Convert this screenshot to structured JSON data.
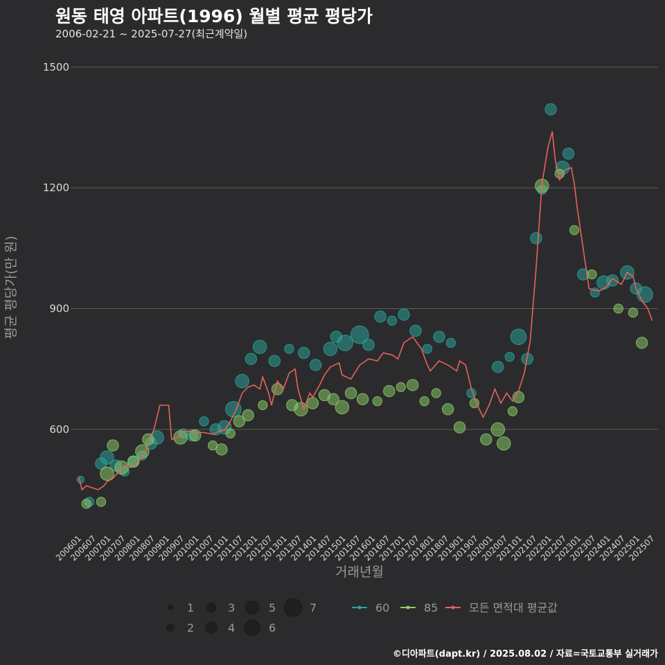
{
  "header": {
    "title": "원동 태영 아파트(1996) 월별 평균 평당가",
    "subtitle": "2006-02-21 ~ 2025-07-27(최근계약일)"
  },
  "footer": {
    "credit": "©디아파트(dapt.kr) / 2025.08.02 / 자료=국토교통부 실거래가"
  },
  "colors": {
    "background": "#2b2b2d",
    "grid": "#5e5e5e",
    "s60": "#2aa7a0",
    "s85": "#8fd16a",
    "avg": "#e8635a"
  },
  "chart_data": {
    "type": "scatter",
    "xlabel": "거래년월",
    "ylabel": "평균 평당가(만 원)",
    "ylim": [
      345,
      1560
    ],
    "yticks": [
      600,
      900,
      1200,
      1500
    ],
    "grid": true,
    "legend_position": "bottom",
    "x_tick_labels": [
      "200601",
      "200607",
      "200701",
      "200707",
      "200801",
      "200807",
      "200901",
      "200907",
      "201001",
      "201007",
      "201101",
      "201107",
      "201201",
      "201207",
      "201301",
      "201307",
      "201401",
      "201407",
      "201501",
      "201507",
      "201601",
      "201607",
      "201701",
      "201707",
      "201801",
      "201807",
      "201901",
      "201907",
      "202001",
      "202007",
      "202101",
      "202107",
      "202201",
      "202207",
      "202301",
      "202307",
      "202401",
      "202407",
      "202501",
      "202507"
    ],
    "size_legend": [
      "1",
      "2",
      "3",
      "4",
      "5",
      "6",
      "7"
    ],
    "series": [
      {
        "name": "60",
        "type": "scatter",
        "points": [
          [
            2006.1,
            475,
            2
          ],
          [
            2006.4,
            420,
            3
          ],
          [
            2006.8,
            515,
            4
          ],
          [
            2007.0,
            530,
            5
          ],
          [
            2007.3,
            510,
            4
          ],
          [
            2007.6,
            495,
            3
          ],
          [
            2007.9,
            520,
            4
          ],
          [
            2008.2,
            535,
            3
          ],
          [
            2008.5,
            565,
            4
          ],
          [
            2008.7,
            580,
            5
          ],
          [
            2009.6,
            590,
            3
          ],
          [
            2009.9,
            585,
            4
          ],
          [
            2010.3,
            620,
            3
          ],
          [
            2010.7,
            600,
            4
          ],
          [
            2011.0,
            605,
            5
          ],
          [
            2011.3,
            650,
            6
          ],
          [
            2011.6,
            720,
            5
          ],
          [
            2011.9,
            775,
            4
          ],
          [
            2012.2,
            805,
            5
          ],
          [
            2012.7,
            770,
            4
          ],
          [
            2013.2,
            800,
            3
          ],
          [
            2013.7,
            790,
            4
          ],
          [
            2014.1,
            760,
            4
          ],
          [
            2014.6,
            800,
            5
          ],
          [
            2014.8,
            830,
            4
          ],
          [
            2015.1,
            815,
            6
          ],
          [
            2015.6,
            835,
            7
          ],
          [
            2015.9,
            810,
            4
          ],
          [
            2016.3,
            880,
            4
          ],
          [
            2016.7,
            870,
            3
          ],
          [
            2017.1,
            885,
            4
          ],
          [
            2017.5,
            845,
            4
          ],
          [
            2017.9,
            800,
            3
          ],
          [
            2018.3,
            830,
            4
          ],
          [
            2018.7,
            815,
            3
          ],
          [
            2019.4,
            690,
            3
          ],
          [
            2020.3,
            755,
            4
          ],
          [
            2020.7,
            780,
            3
          ],
          [
            2021.0,
            830,
            6
          ],
          [
            2021.3,
            775,
            4
          ],
          [
            2021.6,
            1075,
            4
          ],
          [
            2021.8,
            1195,
            3
          ],
          [
            2022.1,
            1395,
            4
          ],
          [
            2022.5,
            1250,
            5
          ],
          [
            2022.7,
            1285,
            4
          ],
          [
            2023.2,
            985,
            4
          ],
          [
            2023.6,
            940,
            3
          ],
          [
            2023.9,
            965,
            5
          ],
          [
            2024.2,
            970,
            4
          ],
          [
            2024.7,
            990,
            5
          ],
          [
            2025.0,
            950,
            4
          ],
          [
            2025.3,
            935,
            6
          ]
        ]
      },
      {
        "name": "85",
        "type": "scatter",
        "points": [
          [
            2006.3,
            415,
            3
          ],
          [
            2006.8,
            420,
            3
          ],
          [
            2007.0,
            490,
            5
          ],
          [
            2007.2,
            560,
            4
          ],
          [
            2007.5,
            505,
            5
          ],
          [
            2007.9,
            520,
            4
          ],
          [
            2008.2,
            545,
            5
          ],
          [
            2008.4,
            575,
            4
          ],
          [
            2009.5,
            580,
            5
          ],
          [
            2010.0,
            585,
            4
          ],
          [
            2010.6,
            560,
            3
          ],
          [
            2010.9,
            550,
            4
          ],
          [
            2011.2,
            590,
            3
          ],
          [
            2011.5,
            620,
            4
          ],
          [
            2011.8,
            635,
            4
          ],
          [
            2012.3,
            660,
            3
          ],
          [
            2012.8,
            700,
            4
          ],
          [
            2013.3,
            660,
            4
          ],
          [
            2013.6,
            650,
            5
          ],
          [
            2014.0,
            665,
            4
          ],
          [
            2014.4,
            685,
            4
          ],
          [
            2014.7,
            675,
            4
          ],
          [
            2015.0,
            655,
            5
          ],
          [
            2015.3,
            690,
            4
          ],
          [
            2015.7,
            675,
            4
          ],
          [
            2016.2,
            670,
            3
          ],
          [
            2016.6,
            695,
            4
          ],
          [
            2017.0,
            705,
            3
          ],
          [
            2017.4,
            710,
            4
          ],
          [
            2017.8,
            670,
            3
          ],
          [
            2018.2,
            690,
            3
          ],
          [
            2018.6,
            650,
            4
          ],
          [
            2019.0,
            605,
            4
          ],
          [
            2019.5,
            665,
            3
          ],
          [
            2019.9,
            575,
            4
          ],
          [
            2020.3,
            600,
            5
          ],
          [
            2020.5,
            565,
            5
          ],
          [
            2020.8,
            645,
            3
          ],
          [
            2021.0,
            680,
            4
          ],
          [
            2021.8,
            1205,
            5
          ],
          [
            2022.4,
            1235,
            3
          ],
          [
            2022.9,
            1095,
            3
          ],
          [
            2023.5,
            985,
            3
          ],
          [
            2024.4,
            900,
            3
          ],
          [
            2024.9,
            890,
            3
          ],
          [
            2025.2,
            815,
            4
          ]
        ]
      },
      {
        "name": "모든 면적대 평균값",
        "type": "line",
        "points": [
          [
            2006.05,
            480
          ],
          [
            2006.15,
            450
          ],
          [
            2006.3,
            460
          ],
          [
            2006.5,
            455
          ],
          [
            2006.7,
            450
          ],
          [
            2006.9,
            460
          ],
          [
            2007.0,
            470
          ],
          [
            2007.2,
            478
          ],
          [
            2007.4,
            495
          ],
          [
            2007.6,
            510
          ],
          [
            2007.8,
            505
          ],
          [
            2008.0,
            515
          ],
          [
            2008.2,
            530
          ],
          [
            2008.4,
            560
          ],
          [
            2008.6,
            600
          ],
          [
            2008.8,
            660
          ],
          [
            2009.0,
            660
          ],
          [
            2009.1,
            660
          ],
          [
            2009.2,
            575
          ],
          [
            2009.4,
            580
          ],
          [
            2009.6,
            595
          ],
          [
            2009.8,
            595
          ],
          [
            2010.0,
            593
          ],
          [
            2010.3,
            592
          ],
          [
            2010.6,
            588
          ],
          [
            2010.8,
            595
          ],
          [
            2011.0,
            598
          ],
          [
            2011.2,
            620
          ],
          [
            2011.4,
            650
          ],
          [
            2011.6,
            690
          ],
          [
            2011.8,
            705
          ],
          [
            2012.0,
            710
          ],
          [
            2012.2,
            700
          ],
          [
            2012.3,
            730
          ],
          [
            2012.5,
            690
          ],
          [
            2012.6,
            660
          ],
          [
            2012.8,
            720
          ],
          [
            2013.0,
            700
          ],
          [
            2013.2,
            740
          ],
          [
            2013.4,
            750
          ],
          [
            2013.5,
            700
          ],
          [
            2013.7,
            650
          ],
          [
            2013.9,
            690
          ],
          [
            2014.0,
            680
          ],
          [
            2014.2,
            705
          ],
          [
            2014.4,
            735
          ],
          [
            2014.6,
            755
          ],
          [
            2014.9,
            765
          ],
          [
            2015.0,
            735
          ],
          [
            2015.3,
            725
          ],
          [
            2015.6,
            760
          ],
          [
            2015.9,
            775
          ],
          [
            2016.2,
            770
          ],
          [
            2016.4,
            790
          ],
          [
            2016.7,
            785
          ],
          [
            2016.9,
            775
          ],
          [
            2017.1,
            815
          ],
          [
            2017.4,
            830
          ],
          [
            2017.7,
            800
          ],
          [
            2017.9,
            760
          ],
          [
            2018.0,
            745
          ],
          [
            2018.3,
            770
          ],
          [
            2018.6,
            760
          ],
          [
            2018.9,
            745
          ],
          [
            2019.0,
            770
          ],
          [
            2019.2,
            760
          ],
          [
            2019.4,
            700
          ],
          [
            2019.6,
            660
          ],
          [
            2019.8,
            630
          ],
          [
            2020.0,
            660
          ],
          [
            2020.2,
            700
          ],
          [
            2020.4,
            665
          ],
          [
            2020.6,
            690
          ],
          [
            2020.8,
            670
          ],
          [
            2021.0,
            695
          ],
          [
            2021.2,
            740
          ],
          [
            2021.4,
            820
          ],
          [
            2021.6,
            1000
          ],
          [
            2021.8,
            1210
          ],
          [
            2022.0,
            1300
          ],
          [
            2022.15,
            1340
          ],
          [
            2022.25,
            1270
          ],
          [
            2022.4,
            1220
          ],
          [
            2022.6,
            1245
          ],
          [
            2022.8,
            1250
          ],
          [
            2022.9,
            1210
          ],
          [
            2023.0,
            1150
          ],
          [
            2023.2,
            1050
          ],
          [
            2023.4,
            950
          ],
          [
            2023.6,
            945
          ],
          [
            2023.8,
            945
          ],
          [
            2024.0,
            955
          ],
          [
            2024.2,
            975
          ],
          [
            2024.5,
            960
          ],
          [
            2024.7,
            990
          ],
          [
            2024.9,
            980
          ],
          [
            2025.0,
            950
          ],
          [
            2025.2,
            920
          ],
          [
            2025.4,
            900
          ],
          [
            2025.55,
            870
          ]
        ]
      }
    ]
  }
}
